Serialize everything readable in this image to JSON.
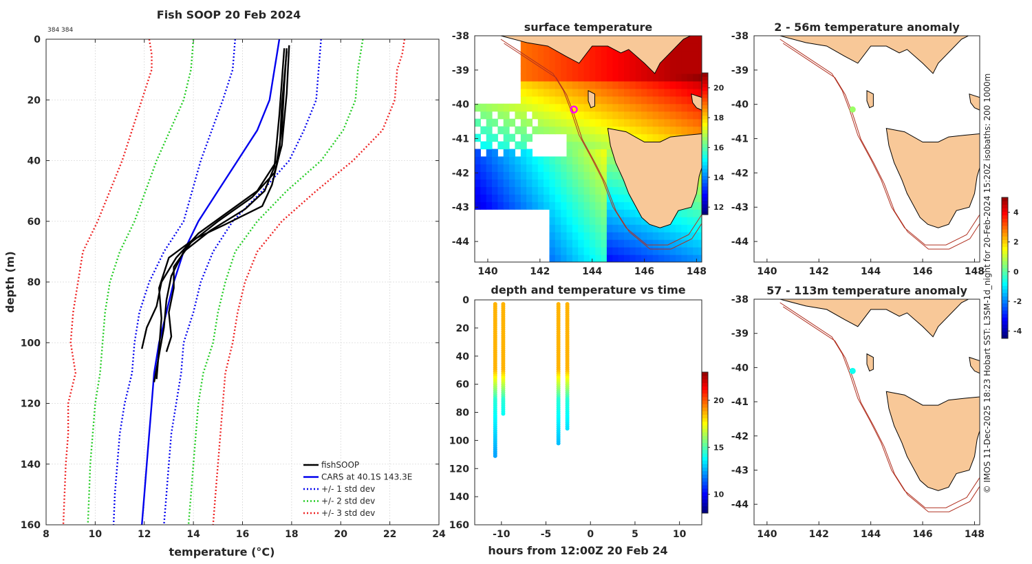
{
  "chart_data": [
    {
      "type": "line",
      "title": "Fish SOOP 20 Feb 2024",
      "subtitle": "384 384",
      "xlabel": "temperature (°C)",
      "ylabel": "depth (m)",
      "xlim": [
        8,
        24
      ],
      "ylim": [
        0,
        160
      ],
      "y_reversed": true,
      "xticks": [
        "8",
        "10",
        "12",
        "14",
        "16",
        "18",
        "20",
        "22",
        "24"
      ],
      "yticks": [
        "0",
        "20",
        "40",
        "60",
        "80",
        "100",
        "120",
        "140",
        "160"
      ],
      "grid": true,
      "legend_position": "bottom-right",
      "series": [
        {
          "name": "fishSOOP",
          "color": "#000000",
          "style": "solid",
          "casts": [
            [
              [
                17.8,
                3
              ],
              [
                17.7,
                15
              ],
              [
                17.6,
                30
              ],
              [
                17.4,
                40
              ],
              [
                16.6,
                50
              ],
              [
                15.4,
                57
              ],
              [
                14.2,
                64
              ],
              [
                13.3,
                72
              ],
              [
                12.7,
                80
              ],
              [
                12.5,
                88
              ],
              [
                12.1,
                95
              ],
              [
                11.9,
                102
              ]
            ],
            [
              [
                17.9,
                2
              ],
              [
                17.8,
                18
              ],
              [
                17.6,
                35
              ],
              [
                17.3,
                44
              ],
              [
                16.4,
                52
              ],
              [
                15.0,
                60
              ],
              [
                13.9,
                67
              ],
              [
                13.2,
                75
              ],
              [
                13.2,
                82
              ],
              [
                13.0,
                90
              ],
              [
                13.1,
                98
              ],
              [
                12.9,
                103
              ]
            ],
            [
              [
                17.8,
                4
              ],
              [
                17.6,
                22
              ],
              [
                17.5,
                38
              ],
              [
                17.2,
                48
              ],
              [
                16.8,
                55
              ],
              [
                15.3,
                61
              ],
              [
                14.0,
                66
              ],
              [
                13.0,
                72
              ],
              [
                12.6,
                82
              ],
              [
                12.7,
                92
              ],
              [
                12.6,
                102
              ],
              [
                12.5,
                112
              ]
            ],
            [
              [
                17.7,
                3
              ],
              [
                17.5,
                25
              ],
              [
                17.3,
                42
              ],
              [
                16.9,
                50
              ],
              [
                16.1,
                56
              ],
              [
                14.7,
                63
              ],
              [
                13.6,
                70
              ],
              [
                13.1,
                78
              ],
              [
                12.9,
                86
              ],
              [
                12.8,
                95
              ],
              [
                12.6,
                104
              ],
              [
                12.4,
                113
              ]
            ]
          ]
        },
        {
          "name": "CARS at 40.1S 143.3E",
          "color": "#0000ee",
          "style": "solid",
          "points": [
            [
              17.5,
              0
            ],
            [
              17.4,
              5
            ],
            [
              17.3,
              10
            ],
            [
              17.1,
              20
            ],
            [
              16.6,
              30
            ],
            [
              15.8,
              40
            ],
            [
              15.0,
              50
            ],
            [
              14.2,
              60
            ],
            [
              13.6,
              70
            ],
            [
              13.2,
              80
            ],
            [
              12.9,
              90
            ],
            [
              12.6,
              100
            ],
            [
              12.4,
              110
            ],
            [
              12.3,
              120
            ],
            [
              12.2,
              130
            ],
            [
              12.1,
              140
            ],
            [
              12.0,
              150
            ],
            [
              11.9,
              160
            ]
          ]
        },
        {
          "name": "+/- 1 std dev",
          "color": "#0000ee",
          "style": "dotted",
          "points_low": [
            [
              15.7,
              0
            ],
            [
              15.6,
              10
            ],
            [
              15.2,
              20
            ],
            [
              14.3,
              40
            ],
            [
              13.6,
              60
            ],
            [
              12.8,
              70
            ],
            [
              12.2,
              80
            ],
            [
              11.8,
              90
            ],
            [
              11.6,
              100
            ],
            [
              11.5,
              110
            ],
            [
              11.2,
              120
            ],
            [
              11.0,
              130
            ],
            [
              10.9,
              140
            ],
            [
              10.8,
              150
            ],
            [
              10.75,
              160
            ]
          ],
          "points_high": [
            [
              19.2,
              0
            ],
            [
              19.1,
              10
            ],
            [
              19.0,
              20
            ],
            [
              18.5,
              30
            ],
            [
              17.9,
              40
            ],
            [
              16.8,
              50
            ],
            [
              15.6,
              60
            ],
            [
              14.8,
              70
            ],
            [
              14.3,
              80
            ],
            [
              14.0,
              90
            ],
            [
              13.6,
              100
            ],
            [
              13.5,
              110
            ],
            [
              13.3,
              120
            ],
            [
              13.1,
              130
            ],
            [
              13.0,
              140
            ],
            [
              12.9,
              150
            ],
            [
              12.8,
              160
            ]
          ]
        },
        {
          "name": "+/- 2 std dev",
          "color": "#22cc22",
          "style": "dotted",
          "points_low": [
            [
              14.0,
              0
            ],
            [
              13.9,
              10
            ],
            [
              13.6,
              20
            ],
            [
              12.5,
              40
            ],
            [
              11.6,
              60
            ],
            [
              11.0,
              70
            ],
            [
              10.6,
              80
            ],
            [
              10.4,
              90
            ],
            [
              10.3,
              100
            ],
            [
              10.2,
              110
            ],
            [
              10.0,
              120
            ],
            [
              9.9,
              130
            ],
            [
              9.8,
              140
            ],
            [
              9.75,
              150
            ],
            [
              9.7,
              160
            ]
          ],
          "points_high": [
            [
              20.9,
              0
            ],
            [
              20.7,
              10
            ],
            [
              20.6,
              20
            ],
            [
              20.1,
              30
            ],
            [
              19.2,
              40
            ],
            [
              17.8,
              50
            ],
            [
              16.6,
              60
            ],
            [
              15.7,
              70
            ],
            [
              15.3,
              80
            ],
            [
              15.0,
              90
            ],
            [
              14.8,
              100
            ],
            [
              14.4,
              110
            ],
            [
              14.2,
              120
            ],
            [
              14.1,
              130
            ],
            [
              14.0,
              140
            ],
            [
              13.9,
              150
            ],
            [
              13.8,
              160
            ]
          ]
        },
        {
          "name": "+/- 3 std dev",
          "color": "#ee2222",
          "style": "dotted",
          "points_low": [
            [
              12.2,
              0
            ],
            [
              12.3,
              5
            ],
            [
              12.3,
              10
            ],
            [
              11.9,
              20
            ],
            [
              11.1,
              40
            ],
            [
              10.1,
              60
            ],
            [
              9.5,
              70
            ],
            [
              9.3,
              80
            ],
            [
              9.1,
              90
            ],
            [
              9.0,
              100
            ],
            [
              9.2,
              110
            ],
            [
              8.9,
              120
            ],
            [
              8.9,
              130
            ],
            [
              8.8,
              140
            ],
            [
              8.75,
              150
            ],
            [
              8.7,
              160
            ]
          ],
          "points_high": [
            [
              22.6,
              0
            ],
            [
              22.5,
              5
            ],
            [
              22.3,
              10
            ],
            [
              22.2,
              20
            ],
            [
              21.7,
              30
            ],
            [
              20.5,
              40
            ],
            [
              19.0,
              50
            ],
            [
              17.6,
              60
            ],
            [
              16.6,
              70
            ],
            [
              16.1,
              80
            ],
            [
              15.8,
              90
            ],
            [
              15.6,
              100
            ],
            [
              15.3,
              110
            ],
            [
              15.2,
              120
            ],
            [
              15.1,
              130
            ],
            [
              15.0,
              140
            ],
            [
              14.9,
              150
            ],
            [
              14.8,
              160
            ]
          ]
        }
      ]
    },
    {
      "type": "heatmap",
      "title": "surface temperature",
      "xlim": [
        139.5,
        148.2
      ],
      "ylim": [
        -44.6,
        -38
      ],
      "xticks": [
        "140",
        "142",
        "144",
        "146",
        "148"
      ],
      "yticks": [
        "-38",
        "-39",
        "-40",
        "-41",
        "-42",
        "-43",
        "-44"
      ],
      "colorbar": {
        "range": [
          11.5,
          21
        ],
        "ticks": [
          "20",
          "18",
          "16",
          "14",
          "12"
        ]
      },
      "marker": {
        "lon": 143.3,
        "lat": -40.15,
        "color": "#ff00ff"
      }
    },
    {
      "type": "scatter",
      "title": "depth and temperature vs time",
      "xlabel": "hours from 12:00Z 20 Feb 24",
      "xlim": [
        -13,
        12.5
      ],
      "ylim": [
        0,
        160
      ],
      "y_reversed": true,
      "xticks": [
        "-10",
        "-5",
        "0",
        "5",
        "10"
      ],
      "yticks": [
        "0",
        "20",
        "40",
        "60",
        "80",
        "100",
        "120",
        "140",
        "160"
      ],
      "colorbar": {
        "range": [
          8,
          23
        ],
        "ticks": [
          "20",
          "15",
          "10"
        ]
      },
      "casts": [
        {
          "hour": -10.7,
          "max_depth": 112
        },
        {
          "hour": -9.8,
          "max_depth": 82
        },
        {
          "hour": -3.6,
          "max_depth": 102
        },
        {
          "hour": -2.6,
          "max_depth": 92
        }
      ]
    },
    {
      "type": "scatter",
      "title": "2 - 56m temperature anomaly",
      "xlim": [
        139.5,
        148.2
      ],
      "ylim": [
        -44.6,
        -38
      ],
      "xticks": [
        "140",
        "142",
        "144",
        "146",
        "148"
      ],
      "yticks": [
        "-38",
        "-39",
        "-40",
        "-41",
        "-42",
        "-43",
        "-44"
      ],
      "points": [
        {
          "lon": 143.3,
          "lat": -40.15,
          "anomaly": 0.5
        }
      ]
    },
    {
      "type": "scatter",
      "title": "57 - 113m temperature anomaly",
      "xlim": [
        139.5,
        148.2
      ],
      "ylim": [
        -44.6,
        -38
      ],
      "xticks": [
        "140",
        "142",
        "144",
        "146",
        "148"
      ],
      "yticks": [
        "-38",
        "-39",
        "-40",
        "-41",
        "-42",
        "-43",
        "-44"
      ],
      "points": [
        {
          "lon": 143.3,
          "lat": -40.1,
          "anomaly": -0.8
        }
      ],
      "colorbar": {
        "range": [
          -4.5,
          5
        ],
        "ticks": [
          "4",
          "2",
          "0",
          "-2",
          "-4"
        ]
      }
    }
  ],
  "credit": "© IMOS 11-Dec-2025 18:23 Hobart SST: L3SM-1d_night for 20-Feb-2024 15:20Z isobaths: 200  1000m",
  "colors": {
    "land": "#f8c898",
    "isobath": "#b03020",
    "axis": "#262626",
    "grid": "#d9d9d9"
  }
}
